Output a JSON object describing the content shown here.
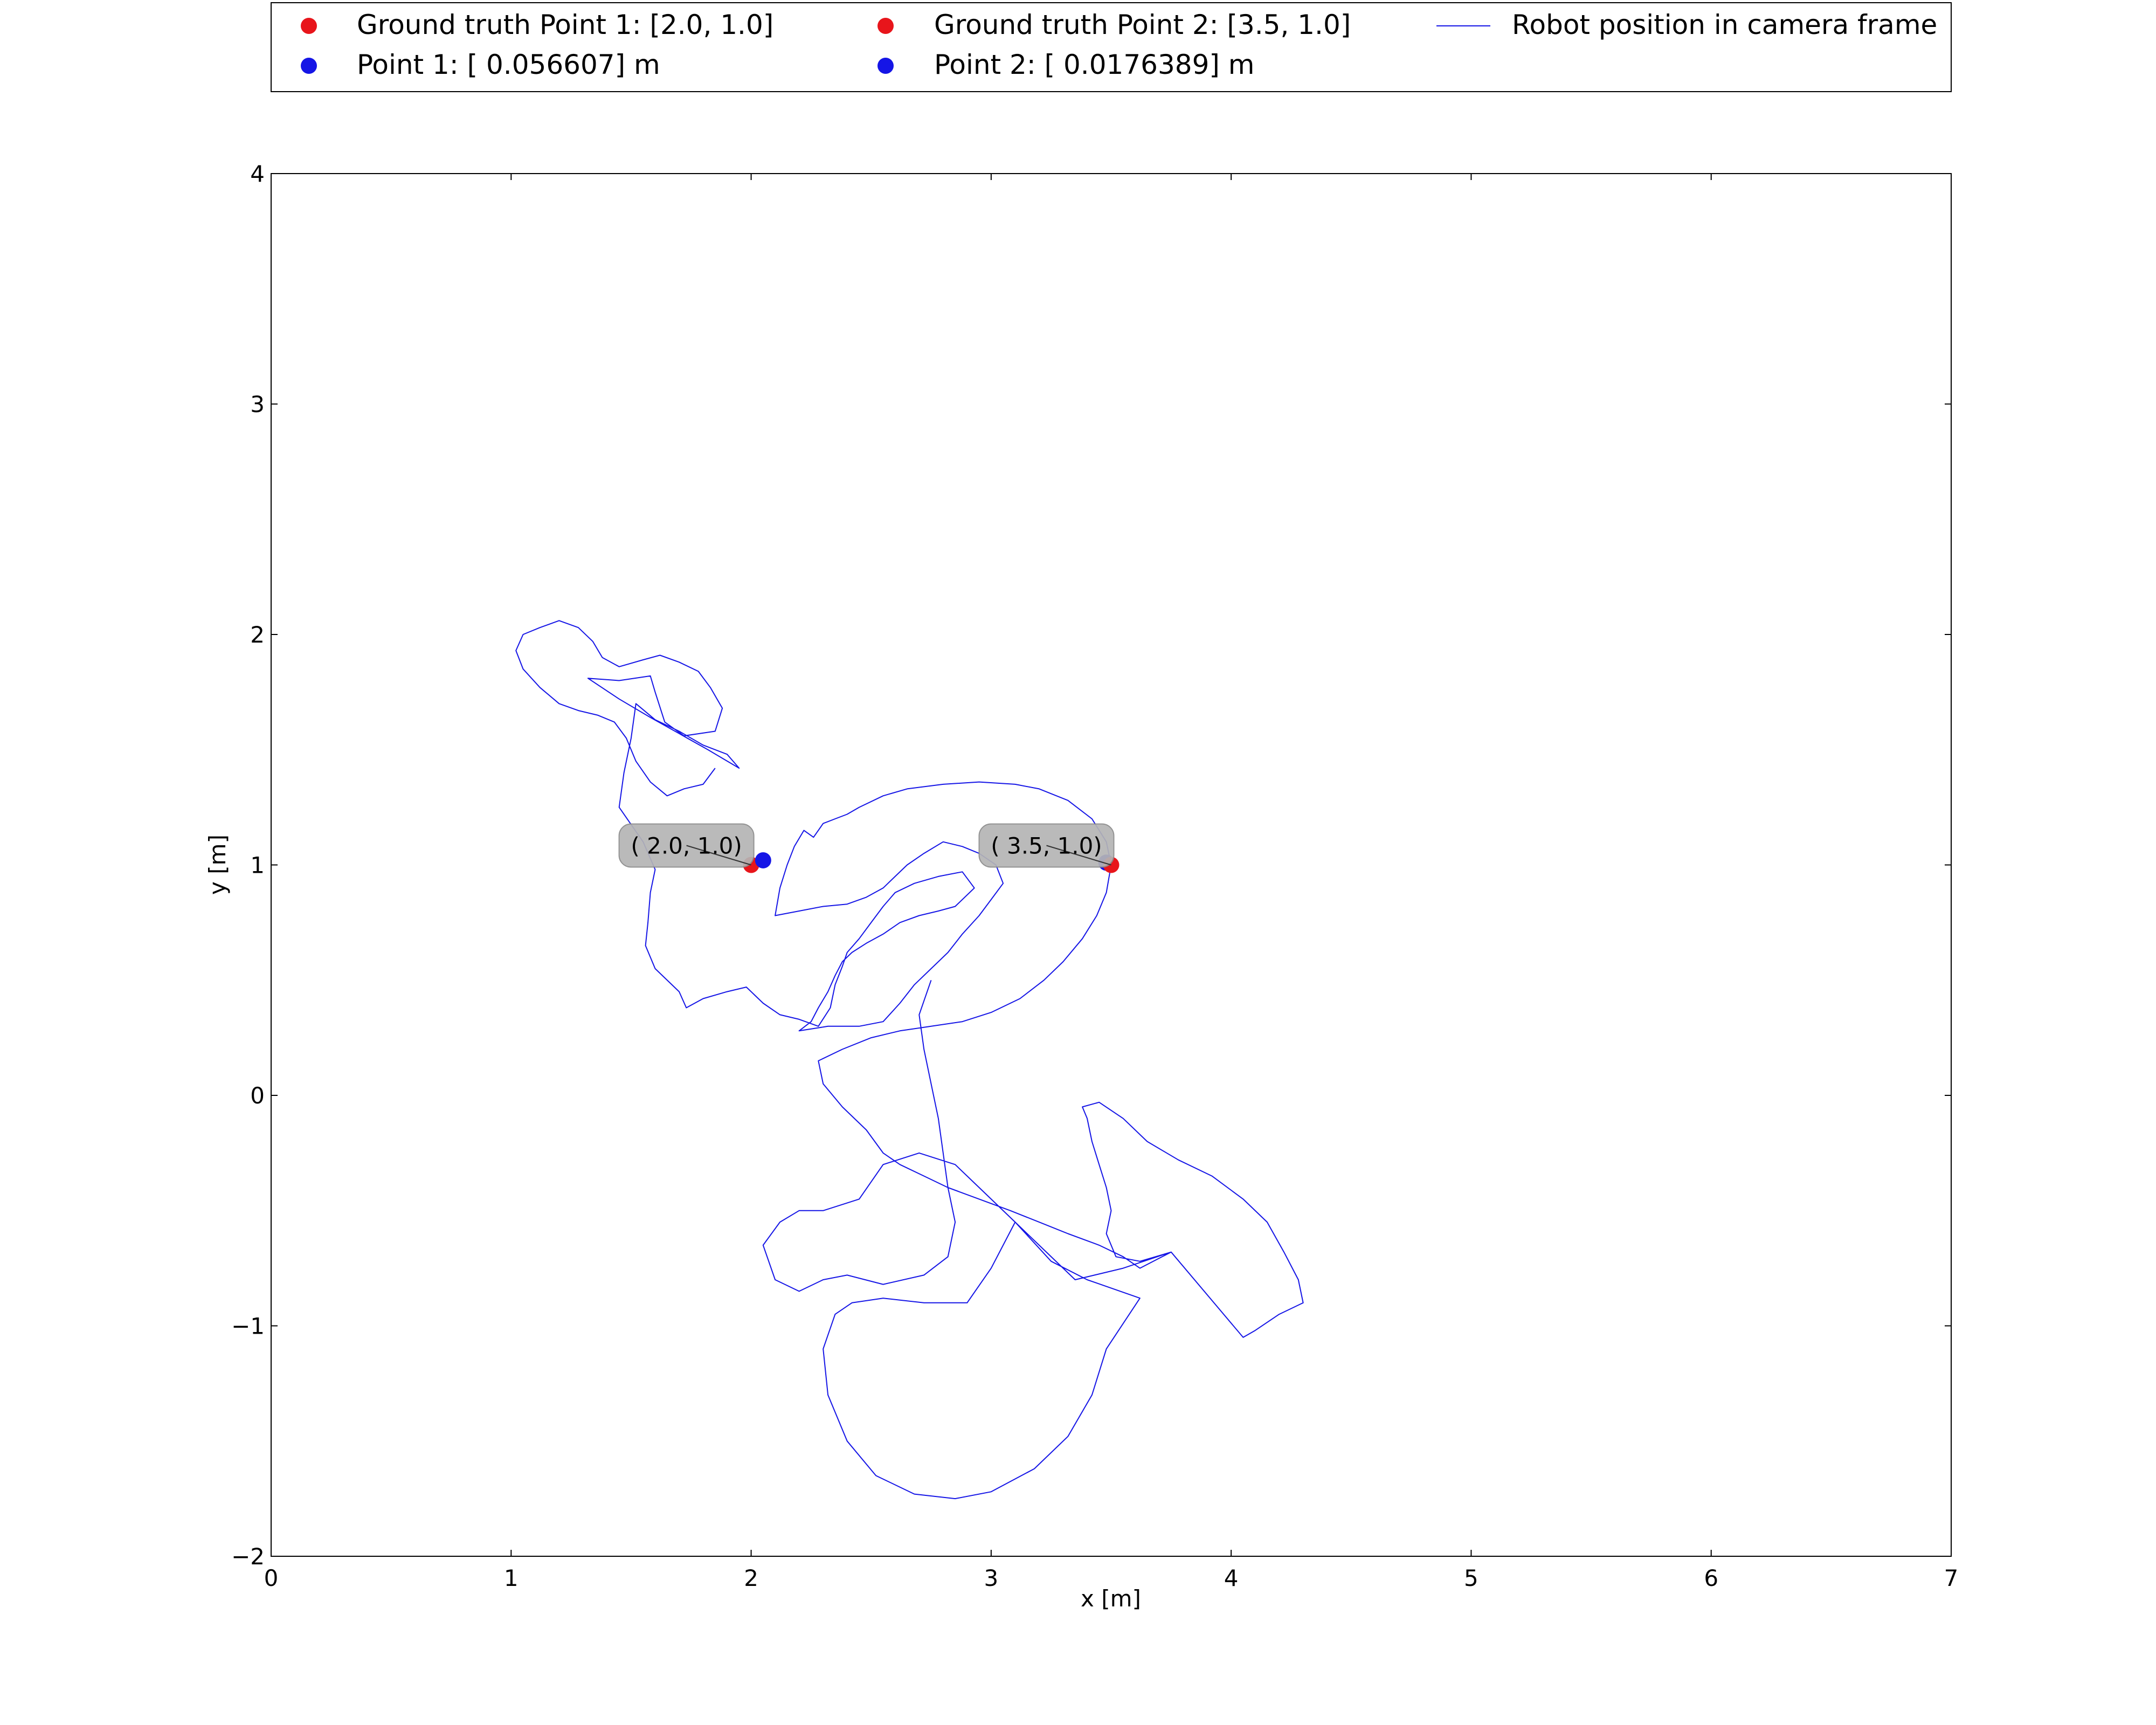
{
  "chart_data": {
    "type": "scatter",
    "xlabel": "x [m]",
    "ylabel": "y [m]",
    "xlim": [
      0,
      7
    ],
    "ylim": [
      -2,
      4
    ],
    "x_ticks": [
      0,
      1,
      2,
      3,
      4,
      5,
      6,
      7
    ],
    "y_ticks": [
      -2,
      -1,
      0,
      1,
      2,
      3,
      4
    ],
    "x_tick_labels": [
      "0",
      "1",
      "2",
      "3",
      "4",
      "5",
      "6",
      "7"
    ],
    "y_tick_labels": [
      "−2",
      "−1",
      "0",
      "1",
      "2",
      "3",
      "4"
    ],
    "grid": false,
    "legend_placement": "top, above plot, 3 columns",
    "points": [
      {
        "key": "gt1",
        "label": "Ground truth Point 1: [2.0, 1.0]",
        "x": 2.0,
        "y": 1.0,
        "color": "#e8151b"
      },
      {
        "key": "gt2",
        "label": "Ground truth Point 2: [3.5, 1.0]",
        "x": 3.5,
        "y": 1.0,
        "color": "#e8151b"
      },
      {
        "key": "p1",
        "label": "Point 1: [ 0.056607] m",
        "x": 2.05,
        "y": 1.02,
        "color": "#1515e6"
      },
      {
        "key": "p2",
        "label": "Point 2: [ 0.0176389] m",
        "x": 3.48,
        "y": 1.01,
        "color": "#1515e6"
      }
    ],
    "annotations": [
      {
        "text": "( 2.0, 1.0)",
        "x": 2.0,
        "y": 1.0
      },
      {
        "text": "( 3.5, 1.0)",
        "x": 3.5,
        "y": 1.0
      }
    ],
    "series": [
      {
        "name": "Robot position in camera frame",
        "color": "#1515e6",
        "points": [
          [
            1.85,
            1.42
          ],
          [
            1.8,
            1.35
          ],
          [
            1.72,
            1.33
          ],
          [
            1.65,
            1.3
          ],
          [
            1.58,
            1.36
          ],
          [
            1.52,
            1.45
          ],
          [
            1.48,
            1.55
          ],
          [
            1.43,
            1.62
          ],
          [
            1.36,
            1.65
          ],
          [
            1.28,
            1.67
          ],
          [
            1.2,
            1.7
          ],
          [
            1.12,
            1.77
          ],
          [
            1.05,
            1.85
          ],
          [
            1.02,
            1.93
          ],
          [
            1.05,
            2.0
          ],
          [
            1.12,
            2.03
          ],
          [
            1.2,
            2.06
          ],
          [
            1.28,
            2.03
          ],
          [
            1.34,
            1.97
          ],
          [
            1.38,
            1.9
          ],
          [
            1.45,
            1.86
          ],
          [
            1.55,
            1.89
          ],
          [
            1.62,
            1.91
          ],
          [
            1.7,
            1.88
          ],
          [
            1.78,
            1.84
          ],
          [
            1.83,
            1.77
          ],
          [
            1.88,
            1.68
          ],
          [
            1.85,
            1.58
          ],
          [
            1.72,
            1.56
          ],
          [
            1.64,
            1.62
          ],
          [
            1.6,
            1.75
          ],
          [
            1.58,
            1.82
          ],
          [
            1.45,
            1.8
          ],
          [
            1.32,
            1.81
          ],
          [
            1.45,
            1.72
          ],
          [
            1.58,
            1.64
          ],
          [
            1.7,
            1.57
          ],
          [
            1.82,
            1.5
          ],
          [
            1.95,
            1.42
          ],
          [
            1.9,
            1.48
          ],
          [
            1.8,
            1.52
          ],
          [
            1.7,
            1.58
          ],
          [
            1.6,
            1.63
          ],
          [
            1.52,
            1.7
          ],
          [
            1.5,
            1.55
          ],
          [
            1.47,
            1.4
          ],
          [
            1.45,
            1.25
          ],
          [
            1.55,
            1.1
          ],
          [
            1.6,
            0.98
          ],
          [
            1.58,
            0.88
          ],
          [
            1.57,
            0.75
          ],
          [
            1.56,
            0.65
          ],
          [
            1.6,
            0.55
          ],
          [
            1.7,
            0.45
          ],
          [
            1.73,
            0.38
          ],
          [
            1.8,
            0.42
          ],
          [
            1.9,
            0.45
          ],
          [
            1.98,
            0.47
          ],
          [
            2.05,
            0.4
          ],
          [
            2.12,
            0.35
          ],
          [
            2.2,
            0.33
          ],
          [
            2.28,
            0.3
          ],
          [
            2.33,
            0.38
          ],
          [
            2.35,
            0.48
          ],
          [
            2.38,
            0.56
          ],
          [
            2.4,
            0.62
          ],
          [
            2.45,
            0.68
          ],
          [
            2.5,
            0.75
          ],
          [
            2.55,
            0.82
          ],
          [
            2.6,
            0.88
          ],
          [
            2.68,
            0.92
          ],
          [
            2.78,
            0.95
          ],
          [
            2.88,
            0.97
          ],
          [
            2.93,
            0.9
          ],
          [
            2.85,
            0.82
          ],
          [
            2.78,
            0.8
          ],
          [
            2.7,
            0.78
          ],
          [
            2.62,
            0.75
          ],
          [
            2.55,
            0.7
          ],
          [
            2.48,
            0.66
          ],
          [
            2.42,
            0.62
          ],
          [
            2.38,
            0.58
          ],
          [
            2.35,
            0.52
          ],
          [
            2.32,
            0.45
          ],
          [
            2.28,
            0.38
          ],
          [
            2.25,
            0.32
          ],
          [
            2.2,
            0.28
          ],
          [
            2.32,
            0.3
          ],
          [
            2.45,
            0.3
          ],
          [
            2.55,
            0.32
          ],
          [
            2.62,
            0.4
          ],
          [
            2.68,
            0.48
          ],
          [
            2.75,
            0.55
          ],
          [
            2.82,
            0.62
          ],
          [
            2.88,
            0.7
          ],
          [
            2.95,
            0.78
          ],
          [
            3.0,
            0.85
          ],
          [
            3.05,
            0.92
          ],
          [
            3.02,
            1.0
          ],
          [
            2.95,
            1.05
          ],
          [
            2.88,
            1.08
          ],
          [
            2.8,
            1.1
          ],
          [
            2.72,
            1.05
          ],
          [
            2.65,
            1.0
          ],
          [
            2.6,
            0.95
          ],
          [
            2.55,
            0.9
          ],
          [
            2.48,
            0.86
          ],
          [
            2.4,
            0.83
          ],
          [
            2.3,
            0.82
          ],
          [
            2.2,
            0.8
          ],
          [
            2.1,
            0.78
          ],
          [
            2.12,
            0.9
          ],
          [
            2.15,
            1.0
          ],
          [
            2.18,
            1.08
          ],
          [
            2.22,
            1.15
          ],
          [
            2.26,
            1.12
          ],
          [
            2.3,
            1.18
          ],
          [
            2.35,
            1.2
          ],
          [
            2.4,
            1.22
          ],
          [
            2.45,
            1.25
          ],
          [
            2.55,
            1.3
          ],
          [
            2.65,
            1.33
          ],
          [
            2.8,
            1.35
          ],
          [
            2.95,
            1.36
          ],
          [
            3.1,
            1.35
          ],
          [
            3.2,
            1.33
          ],
          [
            3.32,
            1.28
          ],
          [
            3.42,
            1.2
          ],
          [
            3.48,
            1.1
          ],
          [
            3.5,
            1.0
          ],
          [
            3.48,
            0.88
          ],
          [
            3.44,
            0.78
          ],
          [
            3.38,
            0.68
          ],
          [
            3.3,
            0.58
          ],
          [
            3.22,
            0.5
          ],
          [
            3.12,
            0.42
          ],
          [
            3.0,
            0.36
          ],
          [
            2.88,
            0.32
          ],
          [
            2.75,
            0.3
          ],
          [
            2.62,
            0.28
          ],
          [
            2.5,
            0.25
          ],
          [
            2.38,
            0.2
          ],
          [
            2.28,
            0.15
          ],
          [
            2.3,
            0.05
          ],
          [
            2.38,
            -0.05
          ],
          [
            2.48,
            -0.15
          ],
          [
            2.55,
            -0.25
          ],
          [
            2.62,
            -0.3
          ],
          [
            2.72,
            -0.35
          ],
          [
            2.82,
            -0.4
          ],
          [
            2.95,
            -0.45
          ],
          [
            3.08,
            -0.5
          ],
          [
            3.2,
            -0.55
          ],
          [
            3.32,
            -0.6
          ],
          [
            3.45,
            -0.65
          ],
          [
            3.55,
            -0.7
          ],
          [
            3.62,
            -0.75
          ],
          [
            3.75,
            -0.68
          ],
          [
            3.62,
            -0.72
          ],
          [
            3.52,
            -0.7
          ],
          [
            3.48,
            -0.6
          ],
          [
            3.5,
            -0.5
          ],
          [
            3.48,
            -0.4
          ],
          [
            3.45,
            -0.3
          ],
          [
            3.42,
            -0.2
          ],
          [
            3.4,
            -0.1
          ],
          [
            3.38,
            -0.05
          ],
          [
            3.45,
            -0.03
          ],
          [
            3.55,
            -0.1
          ],
          [
            3.65,
            -0.2
          ],
          [
            3.78,
            -0.28
          ],
          [
            3.92,
            -0.35
          ],
          [
            4.05,
            -0.45
          ],
          [
            4.15,
            -0.55
          ],
          [
            4.22,
            -0.68
          ],
          [
            4.28,
            -0.8
          ],
          [
            4.3,
            -0.9
          ],
          [
            4.2,
            -0.95
          ],
          [
            4.1,
            -1.02
          ],
          [
            4.05,
            -1.05
          ],
          [
            3.75,
            -0.68
          ],
          [
            3.55,
            -0.75
          ],
          [
            3.35,
            -0.8
          ],
          [
            3.2,
            -0.65
          ],
          [
            3.1,
            -0.55
          ],
          [
            3.0,
            -0.75
          ],
          [
            2.9,
            -0.9
          ],
          [
            2.72,
            -0.9
          ],
          [
            2.55,
            -0.88
          ],
          [
            2.42,
            -0.9
          ],
          [
            2.35,
            -0.95
          ],
          [
            2.3,
            -1.1
          ],
          [
            2.32,
            -1.3
          ],
          [
            2.4,
            -1.5
          ],
          [
            2.52,
            -1.65
          ],
          [
            2.68,
            -1.73
          ],
          [
            2.85,
            -1.75
          ],
          [
            3.0,
            -1.72
          ],
          [
            3.18,
            -1.62
          ],
          [
            3.32,
            -1.48
          ],
          [
            3.42,
            -1.3
          ],
          [
            3.48,
            -1.1
          ],
          [
            3.62,
            -0.88
          ],
          [
            3.4,
            -0.8
          ],
          [
            3.25,
            -0.72
          ],
          [
            3.1,
            -0.55
          ],
          [
            2.95,
            -0.4
          ],
          [
            2.85,
            -0.3
          ],
          [
            2.7,
            -0.25
          ],
          [
            2.55,
            -0.3
          ],
          [
            2.45,
            -0.45
          ],
          [
            2.3,
            -0.5
          ],
          [
            2.2,
            -0.5
          ],
          [
            2.12,
            -0.55
          ],
          [
            2.05,
            -0.65
          ],
          [
            2.1,
            -0.8
          ],
          [
            2.2,
            -0.85
          ],
          [
            2.3,
            -0.8
          ],
          [
            2.4,
            -0.78
          ],
          [
            2.55,
            -0.82
          ],
          [
            2.72,
            -0.78
          ],
          [
            2.82,
            -0.7
          ],
          [
            2.85,
            -0.55
          ],
          [
            2.82,
            -0.4
          ],
          [
            2.8,
            -0.25
          ],
          [
            2.78,
            -0.1
          ],
          [
            2.75,
            0.05
          ],
          [
            2.72,
            0.2
          ],
          [
            2.7,
            0.35
          ],
          [
            2.75,
            0.5
          ]
        ]
      }
    ]
  }
}
